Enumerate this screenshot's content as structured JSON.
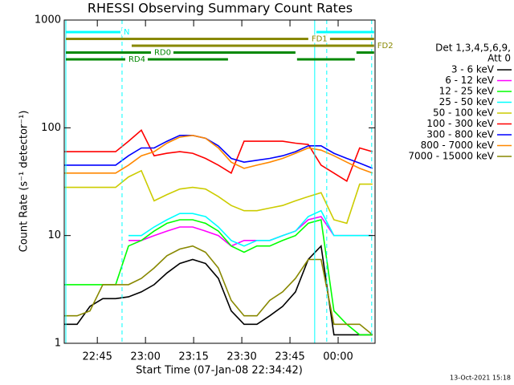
{
  "chart_data": {
    "type": "line",
    "title": "RHESSI Observing Summary Count Rates",
    "x_label": "Start Time (07-Jan-08 22:34:42)",
    "y_label": "Count Rate (s⁻¹ detector⁻¹)",
    "legend_title": [
      "Det 1,3,4,5,6,9,",
      "Att 0"
    ],
    "footer": "13-Oct-2021 15:18",
    "log_y": true,
    "legend": "right",
    "xlim": [
      0,
      96.8
    ],
    "xticks": [
      {
        "value": 10.3,
        "label": "22:45"
      },
      {
        "value": 25.3,
        "label": "23:00"
      },
      {
        "value": 40.3,
        "label": "23:15"
      },
      {
        "value": 55.3,
        "label": "23:30"
      },
      {
        "value": 70.3,
        "label": "23:45"
      },
      {
        "value": 85.3,
        "label": "00:00"
      }
    ],
    "ylim": [
      1,
      1000
    ],
    "yticks": [
      1,
      10,
      100,
      1000
    ],
    "x": [
      0,
      4,
      8,
      12,
      16,
      20,
      24,
      28,
      32,
      36,
      40,
      44,
      48,
      52,
      56,
      60,
      64,
      68,
      72,
      76,
      80,
      84,
      88,
      92,
      96
    ],
    "series": [
      {
        "name": "3 - 6 keV",
        "color": "#000000",
        "values": [
          1.5,
          1.5,
          2.2,
          2.6,
          2.6,
          2.7,
          3,
          3.5,
          4.5,
          5.5,
          6,
          5.5,
          4,
          2,
          1.5,
          1.5,
          1.8,
          2.2,
          3,
          6,
          8,
          1.2,
          1.2,
          1.2,
          1.2
        ]
      },
      {
        "name": "6 - 12 keV",
        "color": "#ff00ff",
        "values": [
          null,
          null,
          null,
          null,
          null,
          9,
          9,
          10,
          11,
          12,
          12,
          11,
          10,
          8,
          9,
          9,
          9,
          10,
          11,
          14,
          15,
          10,
          10,
          10,
          10
        ]
      },
      {
        "name": "12 - 25 keV",
        "color": "#00ff00",
        "values": [
          3.5,
          3.5,
          3.5,
          3.5,
          3.5,
          8,
          9,
          11,
          13,
          14,
          14,
          13,
          11,
          8,
          7,
          8,
          8,
          9,
          10,
          13,
          14,
          2,
          1.5,
          1.2,
          1.2
        ]
      },
      {
        "name": "25 - 50 keV",
        "color": "#00ffff",
        "values": [
          null,
          null,
          null,
          null,
          null,
          10,
          10,
          12,
          14,
          16,
          16,
          15,
          12,
          9,
          8,
          9,
          9,
          10,
          11,
          15,
          17,
          10,
          10,
          10,
          10
        ]
      },
      {
        "name": "50 - 100 keV",
        "color": "#cccc00",
        "values": [
          28,
          28,
          28,
          28,
          28,
          35,
          40,
          21,
          24,
          27,
          28,
          27,
          23,
          19,
          17,
          17,
          18,
          19,
          21,
          23,
          25,
          14,
          13,
          30,
          30
        ]
      },
      {
        "name": "100 - 300 keV",
        "color": "#ff0000",
        "values": [
          60,
          60,
          60,
          60,
          60,
          75,
          95,
          55,
          58,
          60,
          58,
          52,
          45,
          38,
          75,
          75,
          75,
          75,
          72,
          70,
          45,
          38,
          32,
          65,
          60
        ]
      },
      {
        "name": "300 - 800 keV",
        "color": "#0000ff",
        "values": [
          45,
          45,
          45,
          45,
          45,
          55,
          65,
          65,
          75,
          85,
          85,
          80,
          68,
          52,
          48,
          50,
          52,
          55,
          60,
          68,
          68,
          58,
          52,
          47,
          42
        ]
      },
      {
        "name": "800 - 7000 keV",
        "color": "#ff8800",
        "values": [
          38,
          38,
          38,
          38,
          38,
          45,
          55,
          60,
          72,
          82,
          85,
          80,
          65,
          48,
          42,
          45,
          48,
          52,
          58,
          65,
          62,
          55,
          48,
          42,
          38
        ]
      },
      {
        "name": "7000 - 15000 keV",
        "color": "#888800",
        "values": [
          1.8,
          1.8,
          2,
          3.5,
          3.5,
          3.5,
          4,
          5,
          6.5,
          7.5,
          8,
          7,
          5,
          2.5,
          1.8,
          1.8,
          2.5,
          3,
          4,
          6,
          6,
          1.5,
          1.5,
          1.5,
          1.2
        ]
      }
    ],
    "annotations": [
      {
        "label": "N",
        "color": "#00ffff",
        "intervals": [
          [
            0.5,
            17.5
          ],
          [
            78.5,
            96.5
          ]
        ]
      },
      {
        "label": "FD1",
        "color": "#888800",
        "intervals": [
          [
            0.5,
            76
          ],
          [
            78.5,
            96.5
          ]
        ]
      },
      {
        "label": "FD2",
        "color": "#888800",
        "intervals": [
          [
            21,
            96.5
          ]
        ]
      },
      {
        "label": "RD0",
        "color": "#008800",
        "intervals": [
          [
            0.5,
            27
          ],
          [
            34,
            72
          ],
          [
            91,
            96.5
          ]
        ]
      },
      {
        "label": "RD4",
        "color": "#008800",
        "intervals": [
          [
            0.5,
            19
          ],
          [
            26,
            51
          ],
          [
            72.5,
            90.5
          ]
        ]
      }
    ],
    "vlines": [
      {
        "x": 0.5,
        "style": "solid",
        "color": "#00ffff"
      },
      {
        "x": 18,
        "style": "dashed",
        "color": "#00ffff"
      },
      {
        "x": 78,
        "style": "solid",
        "color": "#00ffff"
      },
      {
        "x": 81.75,
        "style": "dashed",
        "color": "#00ffff"
      },
      {
        "x": 95.75,
        "style": "dashed",
        "color": "#00ffff"
      }
    ]
  }
}
